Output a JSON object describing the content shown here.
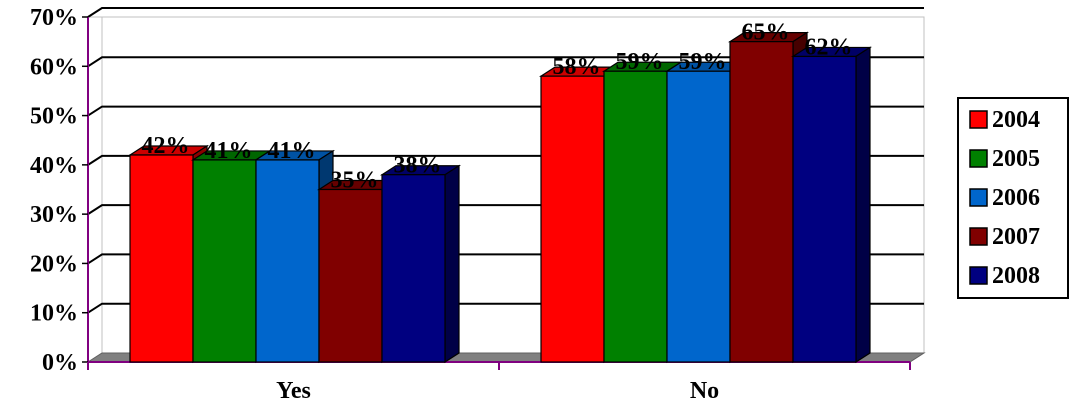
{
  "chart_data": {
    "type": "bar",
    "categories": [
      "Yes",
      "No"
    ],
    "series": [
      {
        "name": "2004",
        "values": [
          42,
          58
        ],
        "color": "#ff0000",
        "labels": [
          "42%",
          "58%"
        ]
      },
      {
        "name": "2005",
        "values": [
          41,
          59
        ],
        "color": "#008000",
        "labels": [
          "41%",
          "59%"
        ]
      },
      {
        "name": "2006",
        "values": [
          41,
          59
        ],
        "color": "#0066cc",
        "labels": [
          "41%",
          "59%"
        ]
      },
      {
        "name": "2007",
        "values": [
          35,
          65
        ],
        "color": "#800000",
        "labels": [
          "35%",
          "65%"
        ]
      },
      {
        "name": "2008",
        "values": [
          38,
          62
        ],
        "color": "#000080",
        "labels": [
          "38%",
          "62%"
        ]
      }
    ],
    "yticks": [
      "0%",
      "10%",
      "20%",
      "30%",
      "40%",
      "50%",
      "60%",
      "70%"
    ],
    "ylim": [
      0,
      70
    ],
    "grid": true,
    "legend": "right",
    "three_d": true,
    "axis_color": "#800080",
    "floor_color": "#808080"
  }
}
